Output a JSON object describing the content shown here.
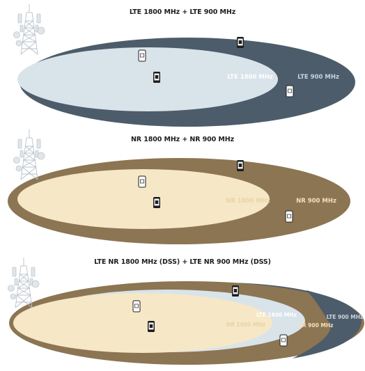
{
  "panels": [
    {
      "title": "LTE 1800 MHz + LTE 900 MHz",
      "inner_label": "LTE 1800 MHz",
      "outer_label": "LTE 900 MHz",
      "colors": {
        "outer": "#4c5c6a",
        "inner": "#d9e3ea",
        "inner_text": "#ffffff",
        "outer_text": "#c9d4de"
      }
    },
    {
      "title": "NR 1800 MHz + NR 900 MHz",
      "inner_label": "NR 1800 MHz",
      "outer_label": "NR 900 MHz",
      "colors": {
        "outer": "#8c7552",
        "inner": "#f6e7c6",
        "inner_text": "#f4e2b9",
        "outer_text": "#f2e0bd"
      }
    },
    {
      "title": "LTE NR 1800 MHz (DSS) + LTE NR 900 MHz (DSS)",
      "labels": {
        "nr_1800": "NR 1800 MHz",
        "lte_1800": "LTE 1800 MHz",
        "nr_900": "NR 900 MHz",
        "lte_900": "LTE 900 MHz"
      },
      "colors": {
        "lte_900": "#4c5c6a",
        "nr_900": "#8c7552",
        "lte_1800": "#d9e3ea",
        "nr_1800": "#f6e7c6",
        "text_light": "#ffffff"
      }
    }
  ],
  "icons": [
    "cell-tower-icon",
    "smartphone-icon"
  ]
}
